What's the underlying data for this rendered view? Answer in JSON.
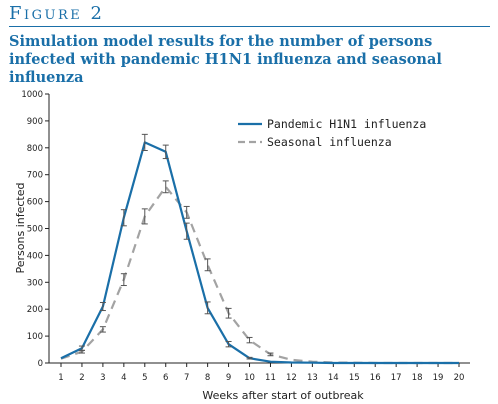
{
  "figure": {
    "label": "Figure 2",
    "title": "Simulation model results for the number of persons infected with pandemic H1N1 influenza and seasonal influenza"
  },
  "colors": {
    "accent": "#1a6fa8",
    "pandemic": "#1a6fa8",
    "seasonal": "#a3a3a3",
    "error_bar": "#555555"
  },
  "chart_data": {
    "type": "line",
    "x": [
      1,
      2,
      3,
      4,
      5,
      6,
      7,
      8,
      9,
      10,
      11,
      12,
      13,
      14,
      15,
      16,
      17,
      18,
      19,
      20
    ],
    "xlabel": "Weeks after start of outbreak",
    "ylabel": "Persons infected",
    "ylim": [
      0,
      1000
    ],
    "yticks": [
      0,
      100,
      200,
      300,
      400,
      500,
      600,
      700,
      800,
      900,
      1000
    ],
    "legend_position": "top-right",
    "grid": false,
    "series": [
      {
        "name": "Pandemic H1N1 influenza",
        "style": "solid",
        "values": [
          18,
          55,
          210,
          540,
          820,
          785,
          490,
          205,
          70,
          18,
          5,
          2,
          1,
          0,
          0,
          0,
          0,
          0,
          0,
          0
        ],
        "error": [
          0,
          8,
          15,
          30,
          30,
          25,
          30,
          22,
          10,
          3,
          0,
          0,
          0,
          0,
          0,
          0,
          0,
          0,
          0,
          0
        ]
      },
      {
        "name": "Seasonal influenza",
        "style": "dashed",
        "values": [
          16,
          42,
          125,
          310,
          545,
          655,
          560,
          365,
          185,
          85,
          32,
          12,
          5,
          2,
          1,
          0,
          0,
          0,
          0,
          0
        ],
        "error": [
          0,
          5,
          10,
          22,
          28,
          22,
          22,
          22,
          18,
          10,
          5,
          0,
          0,
          0,
          0,
          0,
          0,
          0,
          0,
          0
        ]
      }
    ]
  }
}
